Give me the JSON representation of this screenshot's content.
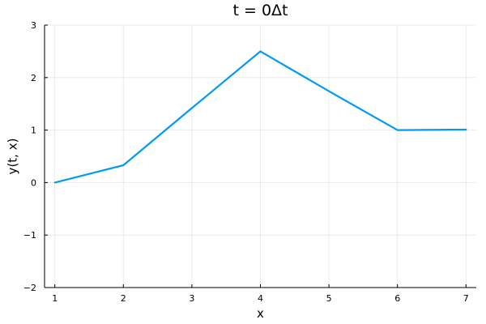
{
  "chart_data": {
    "type": "line",
    "title": "t = 0Δt",
    "xlabel": "x",
    "ylabel": "y(t, x)",
    "xlim": [
      0.85,
      7.15
    ],
    "ylim": [
      -2,
      3
    ],
    "x_ticks": [
      1,
      2,
      3,
      4,
      5,
      6,
      7
    ],
    "x_tick_labels": [
      "1",
      "2",
      "3",
      "4",
      "5",
      "6",
      "7"
    ],
    "y_ticks": [
      -2,
      -1,
      0,
      1,
      2,
      3
    ],
    "y_tick_labels": [
      "−2",
      "−1",
      "0",
      "1",
      "2",
      "3"
    ],
    "grid": true,
    "legend": false,
    "series": [
      {
        "color": "#009af9",
        "x": [
          1,
          2,
          3,
          4,
          5,
          6,
          7
        ],
        "y": [
          0,
          0.33,
          1.42,
          2.5,
          1.74,
          1.0,
          1.01
        ]
      }
    ]
  }
}
